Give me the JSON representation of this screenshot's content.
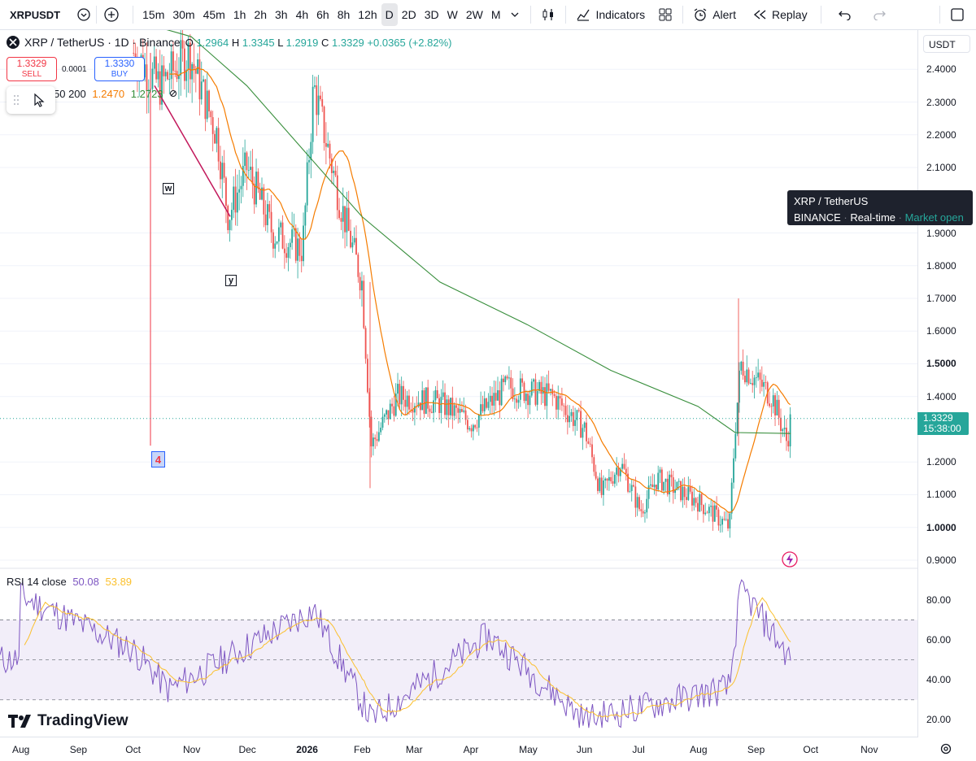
{
  "toolbar": {
    "symbol": "XRPUSDT",
    "intervals": [
      "15m",
      "30m",
      "45m",
      "1h",
      "2h",
      "3h",
      "4h",
      "6h",
      "8h",
      "12h",
      "D",
      "2D",
      "3D",
      "W",
      "2W",
      "M"
    ],
    "active_interval": "D",
    "indicators_label": "Indicators",
    "alert_label": "Alert",
    "replay_label": "Replay"
  },
  "legend": {
    "title": "XRP / TetherUS · 1D · Binance",
    "o_label": "O",
    "o": "1.2964",
    "h_label": "H",
    "h": "1.3345",
    "l_label": "L",
    "l": "1.2919",
    "c_label": "C",
    "c": "1.3329",
    "change": "+0.0365 (+2.82%)"
  },
  "trade": {
    "sell_price": "1.3329",
    "sell_label": "SELL",
    "spread": "0.0001",
    "buy_price": "1.3330",
    "buy_label": "BUY"
  },
  "ma_legend": {
    "periods": "50 200",
    "ma50": "1.2470",
    "ma200": "1.2723"
  },
  "price_scale": {
    "currency": "USDT",
    "ticks": [
      "2.4000",
      "2.3000",
      "2.2000",
      "2.1000",
      "1.9000",
      "1.8000",
      "1.7000",
      "1.6000",
      "1.5000",
      "1.4000",
      "1.2000",
      "1.1000",
      "1.0000",
      "0.9000"
    ],
    "last_price": "1.3329",
    "countdown": "15:38:00"
  },
  "tooltip": {
    "line1": "XRP / TetherUS",
    "exchange": "BINANCE",
    "feed": "Real-time",
    "status": "Market open"
  },
  "rsi": {
    "label": "RSI 14 close",
    "value": "50.08",
    "ma_value": "53.89",
    "ticks": [
      "80.00",
      "60.00",
      "40.00",
      "20.00"
    ]
  },
  "time_axis": [
    "Aug",
    "Sep",
    "Oct",
    "Nov",
    "Dec",
    "2026",
    "Feb",
    "Mar",
    "Apr",
    "May",
    "Jun",
    "Jul",
    "Aug",
    "Sep",
    "Oct",
    "Nov"
  ],
  "wave_labels": {
    "w": "w",
    "y": "y",
    "four": "4"
  },
  "branding": "TradingView",
  "colors": {
    "up": "#26a69a",
    "down": "#ef5350",
    "ma50": "#f57c00",
    "ma200": "#388e3c",
    "rsi": "#7e57c2",
    "rsi_ma": "#fbc02d"
  },
  "chart_data": {
    "type": "candlestick",
    "interval": "1D",
    "ylim": [
      0.88,
      2.52
    ],
    "price_path": [
      {
        "t": "2025-10-01",
        "close": 2.45
      },
      {
        "t": "2025-10-15",
        "close": 2.35
      },
      {
        "t": "2025-10-31",
        "close": 2.45
      },
      {
        "t": "2025-11-15",
        "close": 2.2
      },
      {
        "t": "2025-11-21",
        "close": 1.95
      },
      {
        "t": "2025-12-01",
        "close": 2.1
      },
      {
        "t": "2025-12-15",
        "close": 1.9
      },
      {
        "t": "2025-12-31",
        "close": 1.85
      },
      {
        "t": "2026-01-06",
        "close": 2.35
      },
      {
        "t": "2026-01-20",
        "close": 2.0
      },
      {
        "t": "2026-02-01",
        "close": 1.75
      },
      {
        "t": "2026-02-06",
        "close": 1.25
      },
      {
        "t": "2026-02-20",
        "close": 1.4
      },
      {
        "t": "2026-03-15",
        "close": 1.38
      },
      {
        "t": "2026-04-01",
        "close": 1.32
      },
      {
        "t": "2026-04-20",
        "close": 1.43
      },
      {
        "t": "2026-05-15",
        "close": 1.4
      },
      {
        "t": "2026-06-01",
        "close": 1.3
      },
      {
        "t": "2026-06-10",
        "close": 1.1
      },
      {
        "t": "2026-06-20",
        "close": 1.2
      },
      {
        "t": "2026-07-01",
        "close": 1.05
      },
      {
        "t": "2026-07-10",
        "close": 1.15
      },
      {
        "t": "2026-08-01",
        "close": 1.08
      },
      {
        "t": "2026-08-18",
        "close": 1.0
      },
      {
        "t": "2026-08-21",
        "close": 1.3
      },
      {
        "t": "2026-08-24",
        "close": 1.5
      },
      {
        "t": "2026-09-10",
        "close": 1.4
      },
      {
        "t": "2026-09-18",
        "close": 1.26
      },
      {
        "t": "2026-09-20",
        "close": 1.3329
      }
    ],
    "rsi_ylim": [
      12,
      95
    ],
    "rsi_path": [
      {
        "t": "2025-08-01",
        "v": 82
      },
      {
        "t": "2025-10-01",
        "v": 55
      },
      {
        "t": "2025-10-20",
        "v": 35
      },
      {
        "t": "2026-01-06",
        "v": 75
      },
      {
        "t": "2026-02-06",
        "v": 20
      },
      {
        "t": "2026-04-10",
        "v": 62
      },
      {
        "t": "2026-06-01",
        "v": 20
      },
      {
        "t": "2026-08-18",
        "v": 36
      },
      {
        "t": "2026-08-24",
        "v": 86
      },
      {
        "t": "2026-09-20",
        "v": 50.08
      }
    ]
  }
}
